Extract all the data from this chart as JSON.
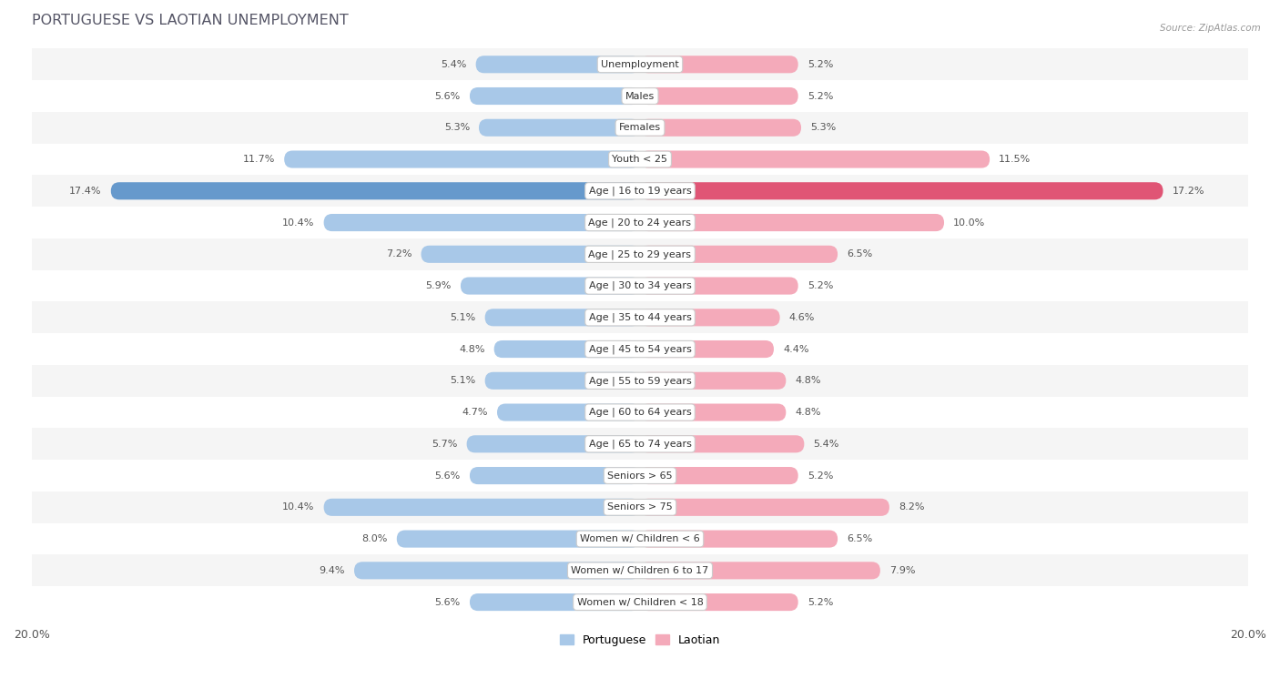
{
  "title": "PORTUGUESE VS LAOTIAN UNEMPLOYMENT",
  "source": "Source: ZipAtlas.com",
  "categories": [
    "Unemployment",
    "Males",
    "Females",
    "Youth < 25",
    "Age | 16 to 19 years",
    "Age | 20 to 24 years",
    "Age | 25 to 29 years",
    "Age | 30 to 34 years",
    "Age | 35 to 44 years",
    "Age | 45 to 54 years",
    "Age | 55 to 59 years",
    "Age | 60 to 64 years",
    "Age | 65 to 74 years",
    "Seniors > 65",
    "Seniors > 75",
    "Women w/ Children < 6",
    "Women w/ Children 6 to 17",
    "Women w/ Children < 18"
  ],
  "portuguese": [
    5.4,
    5.6,
    5.3,
    11.7,
    17.4,
    10.4,
    7.2,
    5.9,
    5.1,
    4.8,
    5.1,
    4.7,
    5.7,
    5.6,
    10.4,
    8.0,
    9.4,
    5.6
  ],
  "laotian": [
    5.2,
    5.2,
    5.3,
    11.5,
    17.2,
    10.0,
    6.5,
    5.2,
    4.6,
    4.4,
    4.8,
    4.8,
    5.4,
    5.2,
    8.2,
    6.5,
    7.9,
    5.2
  ],
  "portuguese_color": "#A8C8E8",
  "laotian_color": "#F4AABA",
  "highlight_portuguese_color": "#6699CC",
  "highlight_laotian_color": "#E05575",
  "background_color": "#ffffff",
  "row_bg_odd": "#f5f5f5",
  "row_bg_even": "#ffffff",
  "max_value": 20.0,
  "legend_portuguese": "Portuguese",
  "legend_laotian": "Laotian"
}
